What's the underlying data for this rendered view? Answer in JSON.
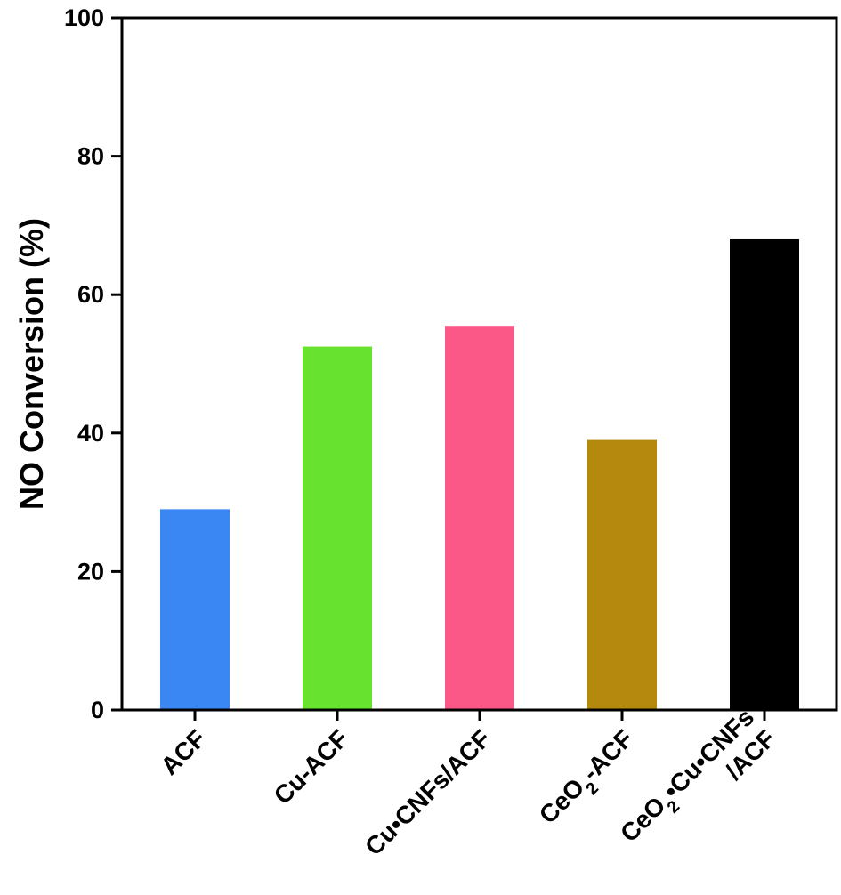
{
  "chart_data": {
    "type": "bar",
    "title": "",
    "xlabel": "",
    "ylabel": "NO Conversion (%)",
    "ylim": [
      0,
      100
    ],
    "yticks": [
      0,
      20,
      40,
      60,
      80,
      100
    ],
    "grid": false,
    "categories": [
      {
        "lines": [
          [
            {
              "t": "ACF"
            }
          ]
        ]
      },
      {
        "lines": [
          [
            {
              "t": "Cu-ACF"
            }
          ]
        ]
      },
      {
        "lines": [
          [
            {
              "t": "Cu•CNFs/ACF"
            }
          ]
        ]
      },
      {
        "lines": [
          [
            {
              "t": "CeO"
            },
            {
              "t": "2",
              "sub": true
            },
            {
              "t": "-ACF"
            }
          ]
        ]
      },
      {
        "lines": [
          [
            {
              "t": "CeO"
            },
            {
              "t": "2",
              "sub": true
            },
            {
              "t": "•Cu•CNFs"
            }
          ],
          [
            {
              "t": "/ACF"
            }
          ]
        ]
      }
    ],
    "values": [
      29,
      52.5,
      55.5,
      39,
      68
    ],
    "colors": [
      "#3a86f3",
      "#66e22f",
      "#fb5787",
      "#b4890d",
      "#000000"
    ]
  }
}
